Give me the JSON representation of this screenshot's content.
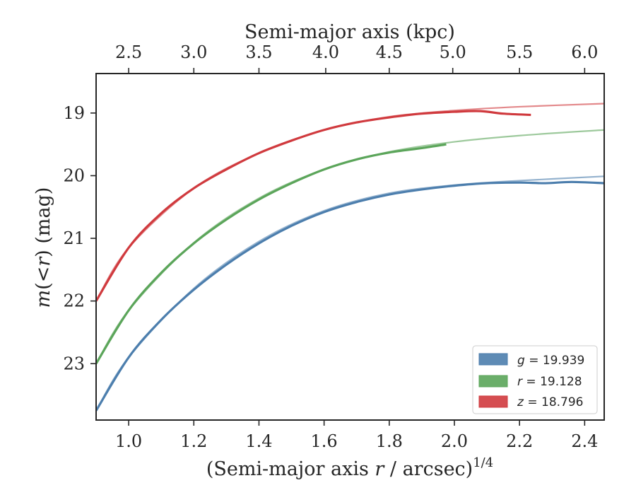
{
  "chart_data": {
    "type": "line",
    "xlabel_prefix": "(Semi-major axis ",
    "xlabel_var": "r",
    "xlabel_suffix": " / arcsec)",
    "xlabel_exp": "1/4",
    "top_xlabel": "Semi-major axis (kpc)",
    "ylabel_var": "m",
    "ylabel_mid": "(<",
    "ylabel_var2": "r",
    "ylabel_end": ") (mag)",
    "xlim": [
      0.9,
      2.46
    ],
    "ylim": [
      23.9,
      18.37
    ],
    "y_inverted": true,
    "x_ticks": [
      "1.0",
      "1.2",
      "1.4",
      "1.6",
      "1.8",
      "2.0",
      "2.2",
      "2.4"
    ],
    "y_ticks": [
      "19",
      "20",
      "21",
      "22",
      "23"
    ],
    "top_ticks": [
      {
        "label": "2.5",
        "x": 1.0
      },
      {
        "label": "3.0",
        "x": 1.2
      },
      {
        "label": "3.5",
        "x": 1.4
      },
      {
        "label": "4.0",
        "x": 1.605
      },
      {
        "label": "4.5",
        "x": 1.8
      },
      {
        "label": "5.0",
        "x": 1.995
      },
      {
        "label": "5.5",
        "x": 2.2
      },
      {
        "label": "6.0",
        "x": 2.4
      }
    ],
    "legend_position": "lower-right",
    "series": [
      {
        "name": "g = 19.939",
        "legend_var": "g",
        "legend_value": "19.939",
        "color": "#4C7EAD",
        "data": [
          [
            0.9,
            23.75
          ],
          [
            1.0,
            22.9
          ],
          [
            1.1,
            22.3
          ],
          [
            1.2,
            21.82
          ],
          [
            1.3,
            21.42
          ],
          [
            1.4,
            21.08
          ],
          [
            1.5,
            20.8
          ],
          [
            1.6,
            20.58
          ],
          [
            1.7,
            20.42
          ],
          [
            1.8,
            20.3
          ],
          [
            1.9,
            20.22
          ],
          [
            2.0,
            20.16
          ],
          [
            2.1,
            20.12
          ],
          [
            2.2,
            20.11
          ],
          [
            2.28,
            20.12
          ],
          [
            2.36,
            20.1
          ],
          [
            2.46,
            20.12
          ]
        ],
        "model": [
          [
            0.9,
            23.75
          ],
          [
            1.0,
            22.9
          ],
          [
            1.2,
            21.8
          ],
          [
            1.4,
            21.05
          ],
          [
            1.6,
            20.56
          ],
          [
            1.8,
            20.28
          ],
          [
            2.0,
            20.15
          ],
          [
            2.2,
            20.08
          ],
          [
            2.46,
            20.01
          ]
        ]
      },
      {
        "name": "r = 19.128",
        "legend_var": "r",
        "legend_value": "19.128",
        "color": "#5BA55A",
        "data": [
          [
            0.9,
            23.0
          ],
          [
            1.0,
            22.15
          ],
          [
            1.1,
            21.55
          ],
          [
            1.2,
            21.08
          ],
          [
            1.3,
            20.7
          ],
          [
            1.4,
            20.38
          ],
          [
            1.5,
            20.12
          ],
          [
            1.6,
            19.9
          ],
          [
            1.7,
            19.74
          ],
          [
            1.8,
            19.63
          ],
          [
            1.9,
            19.56
          ],
          [
            1.975,
            19.5
          ]
        ],
        "model": [
          [
            0.9,
            23.0
          ],
          [
            1.0,
            22.15
          ],
          [
            1.2,
            21.07
          ],
          [
            1.4,
            20.36
          ],
          [
            1.6,
            19.9
          ],
          [
            1.8,
            19.62
          ],
          [
            2.0,
            19.46
          ],
          [
            2.2,
            19.36
          ],
          [
            2.46,
            19.27
          ]
        ]
      },
      {
        "name": "z = 18.796",
        "legend_var": "z",
        "legend_value": "18.796",
        "color": "#D03A3E",
        "data": [
          [
            0.9,
            22.0
          ],
          [
            1.0,
            21.15
          ],
          [
            1.1,
            20.6
          ],
          [
            1.2,
            20.2
          ],
          [
            1.3,
            19.9
          ],
          [
            1.4,
            19.64
          ],
          [
            1.5,
            19.44
          ],
          [
            1.6,
            19.27
          ],
          [
            1.7,
            19.15
          ],
          [
            1.8,
            19.07
          ],
          [
            1.9,
            19.01
          ],
          [
            2.0,
            18.98
          ],
          [
            2.08,
            18.97
          ],
          [
            2.15,
            19.01
          ],
          [
            2.235,
            19.03
          ]
        ],
        "model": [
          [
            0.9,
            22.0
          ],
          [
            1.0,
            21.15
          ],
          [
            1.2,
            20.2
          ],
          [
            1.4,
            19.64
          ],
          [
            1.6,
            19.27
          ],
          [
            1.8,
            19.06
          ],
          [
            2.0,
            18.96
          ],
          [
            2.2,
            18.9
          ],
          [
            2.46,
            18.85
          ]
        ]
      }
    ]
  }
}
